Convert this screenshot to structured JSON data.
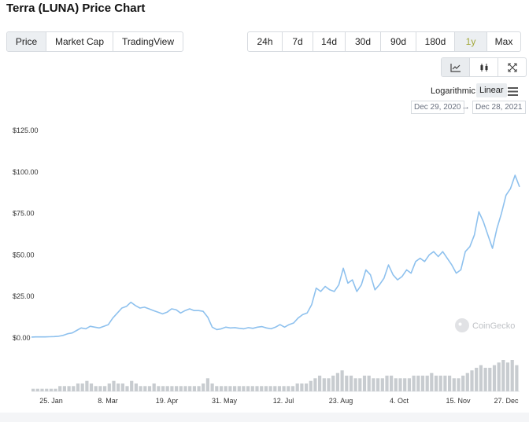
{
  "title": "Terra (LUNA) Price Chart",
  "left_tabs": [
    {
      "label": "Price",
      "active": true
    },
    {
      "label": "Market Cap",
      "active": false
    },
    {
      "label": "TradingView",
      "active": false
    }
  ],
  "range_tabs": [
    {
      "label": "24h"
    },
    {
      "label": "7d"
    },
    {
      "label": "14d"
    },
    {
      "label": "30d"
    },
    {
      "label": "90d"
    },
    {
      "label": "180d"
    },
    {
      "label": "1y",
      "active": true
    },
    {
      "label": "Max"
    }
  ],
  "chart_icons": [
    "line-chart-icon",
    "candlestick-icon",
    "expand-icon"
  ],
  "scale": {
    "log_label": "Logarithmic",
    "linear_label": "Linear"
  },
  "date_range": {
    "from": "Dec 29, 2020",
    "arrow": "→",
    "to": "Dec 28, 2021"
  },
  "watermark": "CoinGecko",
  "colors": {
    "line": "#8ec1ee",
    "volume": "#c8ccd0",
    "active_range": "#a3a83a"
  },
  "chart_data": {
    "type": "line",
    "ylim": [
      0,
      125
    ],
    "yticks": [
      "$0.00",
      "$25.00",
      "$50.00",
      "$75.00",
      "$100.00",
      "$125.00"
    ],
    "xticks": [
      "25. Jan",
      "8. Mar",
      "19. Apr",
      "31. May",
      "12. Jul",
      "23. Aug",
      "4. Oct",
      "15. Nov",
      "27. Dec"
    ],
    "series": [
      {
        "values": [
          0.5,
          0.6,
          0.6,
          0.6,
          0.7,
          0.8,
          1.0,
          1.5,
          2.5,
          3.0,
          4.5,
          6.0,
          5.5,
          7.0,
          6.5,
          6.0,
          7.0,
          8.0,
          12.0,
          15.0,
          18.0,
          19.0,
          21.5,
          19.5,
          18.0,
          18.5,
          17.5,
          16.5,
          15.5,
          14.5,
          15.5,
          17.5,
          17.0,
          15.0,
          16.5,
          17.5,
          16.5,
          16.5,
          16.0,
          12.5,
          6.5,
          5.0,
          5.5,
          6.5,
          6.0,
          6.2,
          5.8,
          5.5,
          6.2,
          5.8,
          6.5,
          6.8,
          6.0,
          5.5,
          6.5,
          8.0,
          6.5,
          8.0,
          9.0,
          12.0,
          14.0,
          15.0,
          20.0,
          30.0,
          28.0,
          31.0,
          29.0,
          28.0,
          32.0,
          42.0,
          33.0,
          35.0,
          28.0,
          32.0,
          41.0,
          38.0,
          29.0,
          32.0,
          36.0,
          44.0,
          38.0,
          35.0,
          37.0,
          41.0,
          39.0,
          46.0,
          48.0,
          46.0,
          50.0,
          52.0,
          49.0,
          52.0,
          48.0,
          44.0,
          39.0,
          41.0,
          52.0,
          55.0,
          62.0,
          76.0,
          70.0,
          62.0,
          54.0,
          66.0,
          75.0,
          86.0,
          90.0,
          98.0,
          91.0
        ]
      }
    ],
    "volume": [
      1,
      1,
      1,
      1,
      1,
      1,
      2,
      2,
      2,
      2,
      3,
      3,
      4,
      3,
      2,
      2,
      2,
      3,
      4,
      3,
      3,
      2,
      4,
      3,
      2,
      2,
      2,
      3,
      2,
      2,
      2,
      2,
      2,
      2,
      2,
      2,
      2,
      2,
      3,
      5,
      3,
      2,
      2,
      2,
      2,
      2,
      2,
      2,
      2,
      2,
      2,
      2,
      2,
      2,
      2,
      2,
      2,
      2,
      2,
      3,
      3,
      3,
      4,
      5,
      6,
      5,
      5,
      6,
      7,
      8,
      6,
      6,
      5,
      5,
      6,
      6,
      5,
      5,
      5,
      6,
      6,
      5,
      5,
      5,
      5,
      6,
      6,
      6,
      6,
      7,
      6,
      6,
      6,
      6,
      5,
      5,
      6,
      7,
      8,
      9,
      10,
      9,
      9,
      10,
      11,
      12,
      11,
      12,
      10
    ]
  }
}
